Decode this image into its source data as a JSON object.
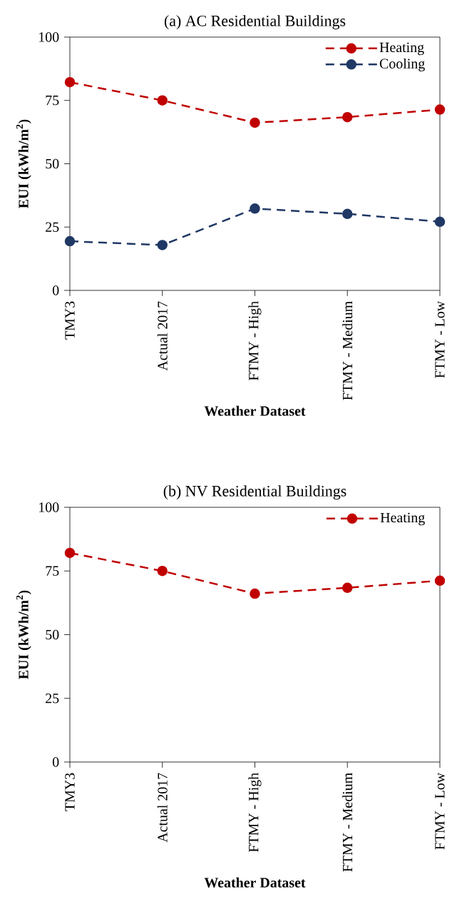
{
  "chart_data": [
    {
      "type": "line",
      "title": "(a) AC Residential Buildings",
      "xlabel": "Weather Dataset",
      "ylabel": "EUI (kWh/m$^{2}$)",
      "categories": [
        "TMY3",
        "Actual 2017",
        "FTMY - High",
        "FTMY - Medium",
        "FTMY - Low"
      ],
      "series": [
        {
          "name": "Heating",
          "color": "#c00000",
          "values": [
            82.2,
            75.0,
            66.2,
            68.4,
            71.4
          ]
        },
        {
          "name": "Cooling",
          "color": "#1f3864",
          "values": [
            19.4,
            17.9,
            32.3,
            30.2,
            27.1
          ]
        }
      ],
      "ylim": [
        0,
        100
      ],
      "yticks": [
        0,
        25,
        50,
        75,
        100
      ],
      "grid": false,
      "legend": "top right",
      "marker": "circle",
      "line_style": "dashed"
    },
    {
      "type": "line",
      "title": "(b) NV Residential Buildings",
      "xlabel": "Weather Dataset",
      "ylabel": "EUI (kWh/m$^{2}$)",
      "categories": [
        "TMY3",
        "Actual 2017",
        "FTMY - High",
        "FTMY - Medium",
        "FTMY - Low"
      ],
      "series": [
        {
          "name": "Heating",
          "color": "#c00000",
          "values": [
            82.1,
            75.0,
            66.1,
            68.4,
            71.2
          ]
        }
      ],
      "ylim": [
        0,
        100
      ],
      "yticks": [
        0,
        25,
        50,
        75,
        100
      ],
      "grid": false,
      "legend": "top right",
      "marker": "circle",
      "line_style": "dashed"
    }
  ]
}
